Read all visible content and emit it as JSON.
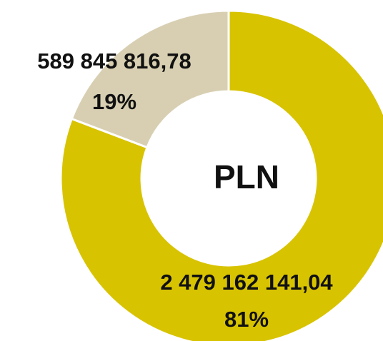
{
  "chart_data": {
    "type": "pie",
    "donut": true,
    "center_label": "PLN",
    "values": [
      2479162141.04,
      589845816.78
    ],
    "value_labels": [
      "2 479 162 141,04",
      "589 845 816,78"
    ],
    "percents": [
      81,
      19
    ],
    "percent_labels": [
      "81%",
      "19%"
    ],
    "colors": [
      "#d8c300",
      "#d8cfb2"
    ]
  }
}
